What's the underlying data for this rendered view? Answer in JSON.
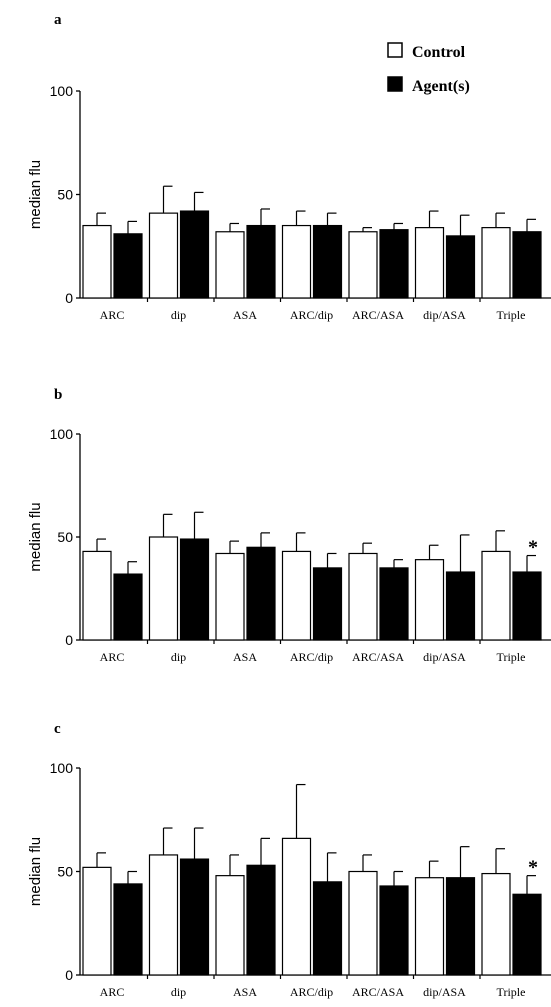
{
  "legend": {
    "control_label": "Control",
    "agent_label": "Agent(s)",
    "control_color": "#ffffff",
    "agent_color": "#000000"
  },
  "chart_data": [
    {
      "panel": "a",
      "type": "bar",
      "ylabel": "median flu",
      "ylim": [
        0,
        100
      ],
      "yticks": [
        "0",
        "50",
        "100"
      ],
      "categories": [
        "ARC",
        "dip",
        "ASA",
        "ARC/dip",
        "ARC/ASA",
        "dip/ASA",
        "Triple"
      ],
      "series": [
        {
          "name": "Control",
          "values": [
            35,
            41,
            32,
            35,
            32,
            34,
            34
          ],
          "errors": [
            6,
            13,
            4,
            7,
            2,
            8,
            7
          ]
        },
        {
          "name": "Agent(s)",
          "values": [
            31,
            42,
            35,
            35,
            33,
            30,
            32
          ],
          "errors": [
            6,
            9,
            8,
            6,
            3,
            10,
            6
          ]
        }
      ],
      "annotations": []
    },
    {
      "panel": "b",
      "type": "bar",
      "ylabel": "median flu",
      "ylim": [
        0,
        100
      ],
      "yticks": [
        "0",
        "50",
        "100"
      ],
      "categories": [
        "ARC",
        "dip",
        "ASA",
        "ARC/dip",
        "ARC/ASA",
        "dip/ASA",
        "Triple"
      ],
      "series": [
        {
          "name": "Control",
          "values": [
            43,
            50,
            42,
            43,
            42,
            39,
            43
          ],
          "errors": [
            6,
            11,
            6,
            9,
            5,
            7,
            10
          ]
        },
        {
          "name": "Agent(s)",
          "values": [
            32,
            49,
            45,
            35,
            35,
            33,
            33
          ],
          "errors": [
            6,
            13,
            7,
            7,
            4,
            18,
            8
          ]
        }
      ],
      "annotations": [
        {
          "category": "Triple",
          "series": "Agent(s)",
          "text": "*"
        }
      ]
    },
    {
      "panel": "c",
      "type": "bar",
      "ylabel": "median flu",
      "ylim": [
        0,
        100
      ],
      "yticks": [
        "0",
        "50",
        "100"
      ],
      "categories": [
        "ARC",
        "dip",
        "ASA",
        "ARC/dip",
        "ARC/ASA",
        "dip/ASA",
        "Triple"
      ],
      "series": [
        {
          "name": "Control",
          "values": [
            52,
            58,
            48,
            66,
            50,
            47,
            49
          ],
          "errors": [
            7,
            13,
            10,
            26,
            8,
            8,
            12
          ]
        },
        {
          "name": "Agent(s)",
          "values": [
            44,
            56,
            53,
            45,
            43,
            47,
            39
          ],
          "errors": [
            6,
            15,
            13,
            14,
            7,
            15,
            9
          ]
        }
      ],
      "annotations": [
        {
          "category": "Triple",
          "series": "Agent(s)",
          "text": "*"
        }
      ]
    }
  ]
}
